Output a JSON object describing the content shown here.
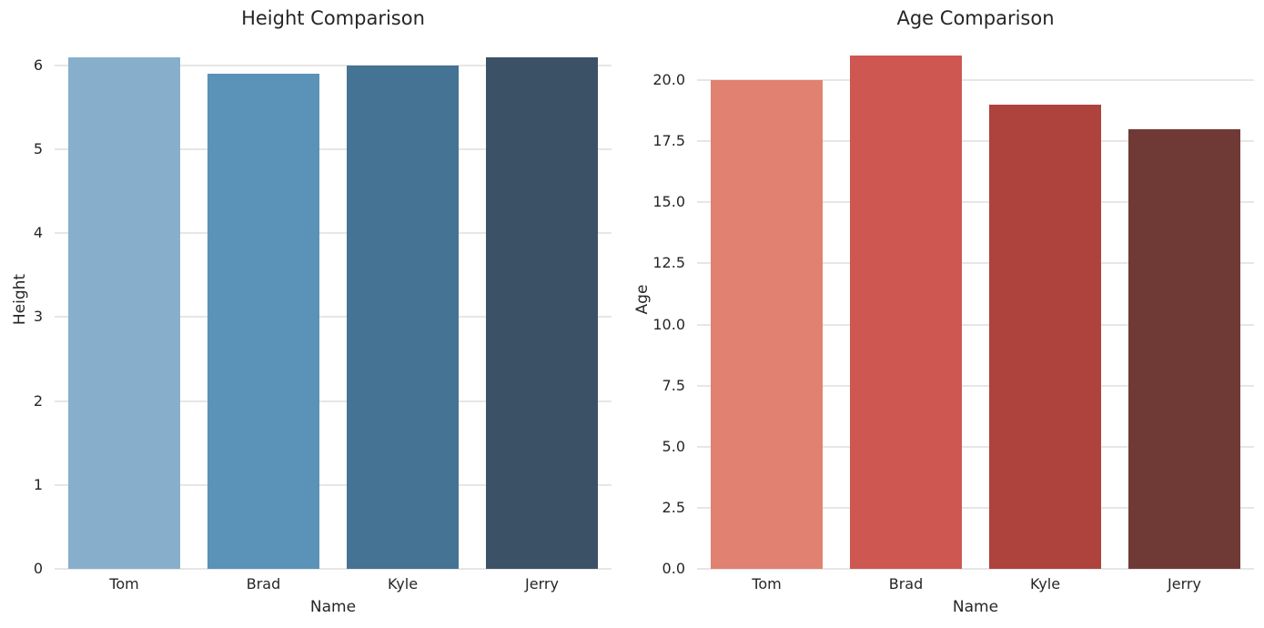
{
  "figure_style": {
    "background": "#ffffff",
    "text_color": "#262626",
    "grid_color": "#cccccc"
  },
  "chart_data": [
    {
      "type": "bar",
      "title": "Height Comparison",
      "xlabel": "Name",
      "ylabel": "Height",
      "categories": [
        "Tom",
        "Brad",
        "Kyle",
        "Jerry"
      ],
      "values": [
        6.1,
        5.9,
        6.0,
        6.1
      ],
      "bar_colors": [
        "#87afcb",
        "#5b92b7",
        "#457394",
        "#3b5166"
      ],
      "yticks": [
        0,
        1,
        2,
        3,
        4,
        5,
        6
      ],
      "ytick_labels": [
        "0",
        "1",
        "2",
        "3",
        "4",
        "5",
        "6"
      ],
      "ylim": [
        0,
        6.42
      ],
      "grid": true,
      "legend": "none",
      "bar_width_fraction": 0.8
    },
    {
      "type": "bar",
      "title": "Age Comparison",
      "xlabel": "Name",
      "ylabel": "Age",
      "categories": [
        "Tom",
        "Brad",
        "Kyle",
        "Jerry"
      ],
      "values": [
        20,
        21,
        19,
        18
      ],
      "bar_colors": [
        "#e08171",
        "#ce5751",
        "#ae423d",
        "#6f3a36"
      ],
      "yticks": [
        0,
        2.5,
        5,
        7.5,
        10,
        12.5,
        15,
        17.5,
        20
      ],
      "ytick_labels": [
        "0.0",
        "2.5",
        "5.0",
        "7.5",
        "10.0",
        "12.5",
        "15.0",
        "17.5",
        "20.0"
      ],
      "ylim": [
        0,
        22.05
      ],
      "grid": true,
      "legend": "none",
      "bar_width_fraction": 0.8
    }
  ]
}
